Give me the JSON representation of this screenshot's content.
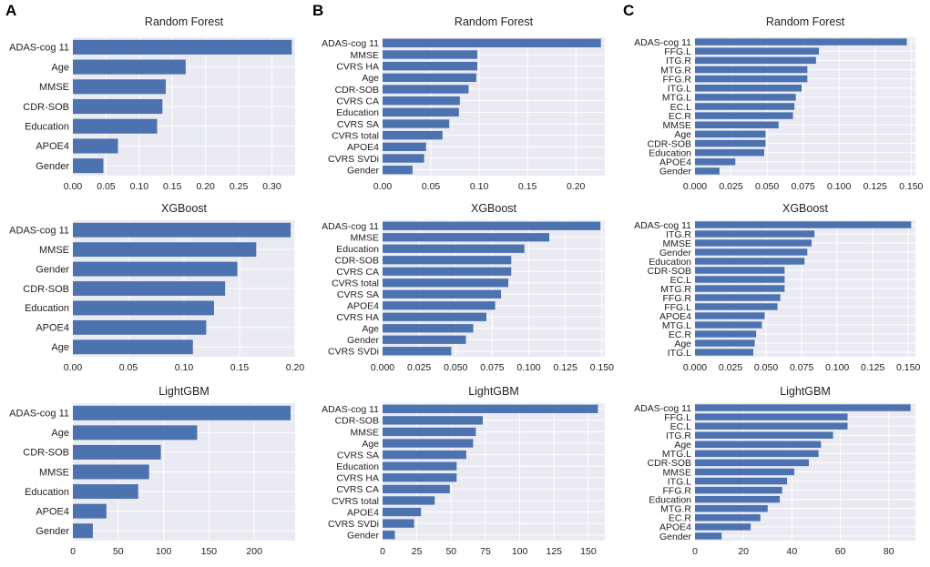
{
  "panel_letters": [
    "A",
    "B",
    "C"
  ],
  "colors": {
    "bar": "#4c72b0",
    "plot_bg": "#eaeaf2",
    "grid": "#ffffff",
    "text": "#222222"
  },
  "chart_data": [
    {
      "panel": "A",
      "title": "Random Forest",
      "type": "bar",
      "orientation": "horizontal",
      "categories": [
        "ADAS-cog 11",
        "Age",
        "MMSE",
        "CDR-SOB",
        "Education",
        "APOE4",
        "Gender"
      ],
      "values": [
        0.33,
        0.17,
        0.14,
        0.135,
        0.127,
        0.068,
        0.046
      ],
      "xlim": [
        0,
        0.335
      ],
      "xticks": [
        0,
        0.05,
        0.1,
        0.15,
        0.2,
        0.25,
        0.3
      ],
      "xtick_labels": [
        "0.00",
        "0.05",
        "0.10",
        "0.15",
        "0.20",
        "0.25",
        "0.30"
      ]
    },
    {
      "panel": "B",
      "title": "Random Forest",
      "type": "bar",
      "orientation": "horizontal",
      "categories": [
        "ADAS-cog 11",
        "MMSE",
        "CVRS HA",
        "Age",
        "CDR-SOB",
        "CVRS CA",
        "Education",
        "CVRS SA",
        "CVRS total",
        "APOE4",
        "CVRS SVDi",
        "Gender"
      ],
      "values": [
        0.226,
        0.098,
        0.098,
        0.097,
        0.089,
        0.08,
        0.079,
        0.069,
        0.062,
        0.045,
        0.043,
        0.031
      ],
      "xlim": [
        0,
        0.23
      ],
      "xticks": [
        0,
        0.05,
        0.1,
        0.15,
        0.2
      ],
      "xtick_labels": [
        "0.00",
        "0.05",
        "0.10",
        "0.15",
        "0.20"
      ]
    },
    {
      "panel": "C",
      "title": "Random Forest",
      "type": "bar",
      "orientation": "horizontal",
      "categories": [
        "ADAS-cog 11",
        "FFG.L",
        "ITG.R",
        "MTG.R",
        "FFG.R",
        "ITG.L",
        "MTG.L",
        "EC.L",
        "EC.R",
        "MMSE",
        "Age",
        "CDR-SOB",
        "Education",
        "APOE4",
        "Gender"
      ],
      "values": [
        0.147,
        0.086,
        0.084,
        0.078,
        0.078,
        0.074,
        0.07,
        0.069,
        0.068,
        0.058,
        0.049,
        0.049,
        0.048,
        0.028,
        0.017
      ],
      "xlim": [
        0,
        0.153
      ],
      "xticks": [
        0,
        0.025,
        0.05,
        0.075,
        0.1,
        0.125,
        0.15
      ],
      "xtick_labels": [
        "0.000",
        "0.025",
        "0.050",
        "0.075",
        "0.100",
        "0.125",
        "0.150"
      ]
    },
    {
      "panel": "A",
      "title": "XGBoost",
      "type": "bar",
      "orientation": "horizontal",
      "categories": [
        "ADAS-cog 11",
        "MMSE",
        "Gender",
        "CDR-SOB",
        "Education",
        "APOE4",
        "Age"
      ],
      "values": [
        0.196,
        0.165,
        0.148,
        0.137,
        0.127,
        0.12,
        0.108
      ],
      "xlim": [
        0,
        0.2
      ],
      "xticks": [
        0,
        0.05,
        0.1,
        0.15,
        0.2
      ],
      "xtick_labels": [
        "0.00",
        "0.05",
        "0.10",
        "0.15",
        "0.20"
      ]
    },
    {
      "panel": "B",
      "title": "XGBoost",
      "type": "bar",
      "orientation": "horizontal",
      "categories": [
        "ADAS-cog 11",
        "MMSE",
        "Education",
        "CDR-SOB",
        "CVRS CA",
        "CVRS total",
        "CVRS SA",
        "APOE4",
        "CVRS HA",
        "Age",
        "Gender",
        "CVRS SVDi"
      ],
      "values": [
        0.149,
        0.114,
        0.097,
        0.088,
        0.088,
        0.086,
        0.081,
        0.077,
        0.071,
        0.062,
        0.057,
        0.047
      ],
      "xlim": [
        0,
        0.152
      ],
      "xticks": [
        0,
        0.025,
        0.05,
        0.075,
        0.1,
        0.125,
        0.15
      ],
      "xtick_labels": [
        "0.000",
        "0.025",
        "0.050",
        "0.075",
        "0.100",
        "0.125",
        "0.150"
      ]
    },
    {
      "panel": "C",
      "title": "XGBoost",
      "type": "bar",
      "orientation": "horizontal",
      "categories": [
        "ADAS-cog 11",
        "ITG.R",
        "MMSE",
        "Gender",
        "Education",
        "CDR-SOB",
        "EC.L",
        "MTG.R",
        "FFG.R",
        "FFG.L",
        "APOE4",
        "MTG.L",
        "EC.R",
        "Age",
        "ITG.L"
      ],
      "values": [
        0.152,
        0.084,
        0.082,
        0.079,
        0.077,
        0.063,
        0.063,
        0.063,
        0.06,
        0.058,
        0.049,
        0.047,
        0.043,
        0.042,
        0.041
      ],
      "xlim": [
        0,
        0.155
      ],
      "xticks": [
        0,
        0.025,
        0.05,
        0.075,
        0.1,
        0.125,
        0.15
      ],
      "xtick_labels": [
        "0.000",
        "0.025",
        "0.050",
        "0.075",
        "0.100",
        "0.125",
        "0.150"
      ]
    },
    {
      "panel": "A",
      "title": "LightGBM",
      "type": "bar",
      "orientation": "horizontal",
      "categories": [
        "ADAS-cog 11",
        "Age",
        "CDR-SOB",
        "MMSE",
        "Education",
        "APOE4",
        "Gender"
      ],
      "values": [
        240,
        137,
        97,
        84,
        72,
        37,
        22
      ],
      "xlim": [
        0,
        245
      ],
      "xticks": [
        0,
        50,
        100,
        150,
        200
      ],
      "xtick_labels": [
        "0",
        "50",
        "100",
        "150",
        "200"
      ]
    },
    {
      "panel": "B",
      "title": "LightGBM",
      "type": "bar",
      "orientation": "horizontal",
      "categories": [
        "ADAS-cog 11",
        "CDR-SOB",
        "MMSE",
        "Age",
        "CVRS SA",
        "Education",
        "CVRS HA",
        "CVRS CA",
        "CVRS total",
        "APOE4",
        "CVRS SVDi",
        "Gender"
      ],
      "values": [
        157,
        73,
        68,
        66,
        61,
        54,
        54,
        49,
        38,
        28,
        23,
        9
      ],
      "xlim": [
        0,
        162
      ],
      "xticks": [
        0,
        25,
        50,
        75,
        100,
        125,
        150
      ],
      "xtick_labels": [
        "0",
        "25",
        "50",
        "75",
        "100",
        "125",
        "150"
      ]
    },
    {
      "panel": "C",
      "title": "LightGBM",
      "type": "bar",
      "orientation": "horizontal",
      "categories": [
        "ADAS-cog 11",
        "FFG.L",
        "EC.L",
        "ITG.R",
        "Age",
        "MTG.L",
        "CDR-SOB",
        "MMSE",
        "ITG.L",
        "FFG.R",
        "Education",
        "MTG.R",
        "EC.R",
        "APOE4",
        "Gender"
      ],
      "values": [
        89,
        63,
        63,
        57,
        52,
        51,
        47,
        41,
        38,
        36,
        35,
        30,
        27,
        23,
        11
      ],
      "xlim": [
        0,
        91
      ],
      "xticks": [
        0,
        20,
        40,
        60,
        80
      ],
      "xtick_labels": [
        "0",
        "20",
        "40",
        "60",
        "80"
      ]
    }
  ]
}
